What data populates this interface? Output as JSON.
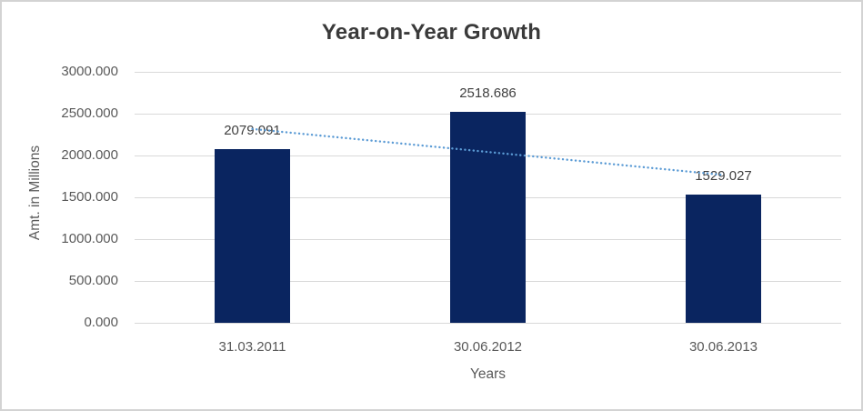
{
  "frame": {
    "background": "#ffffff",
    "border_color": "#d3d3d3"
  },
  "chart_data": {
    "type": "bar",
    "title": "Year-on-Year Growth",
    "xlabel": "Years",
    "ylabel": "Amt. in Millions",
    "categories": [
      "31.03.2011",
      "30.06.2012",
      "30.06.2013"
    ],
    "values": [
      2079.091,
      2518.686,
      1529.027
    ],
    "data_labels": [
      "2079.091",
      "2518.686",
      "1529.027"
    ],
    "ylim": [
      0,
      3000
    ],
    "ytick_step": 500,
    "ytick_labels_bottom_up": [
      "0.000",
      "500.000",
      "1000.000",
      "1500.000",
      "2000.000",
      "2500.000",
      "3000.000"
    ],
    "grid": true,
    "legend": "none",
    "trendline": {
      "kind": "linear",
      "line_style": "dotted",
      "color": "#5b9bd5",
      "start_value": 2317.3,
      "end_value": 1767.2
    },
    "colors": {
      "bar": "#0a2560",
      "gridline": "#d9d9d9",
      "title_text": "#3a3a3a",
      "axis_text": "#595959",
      "data_label_text": "#404040"
    }
  }
}
